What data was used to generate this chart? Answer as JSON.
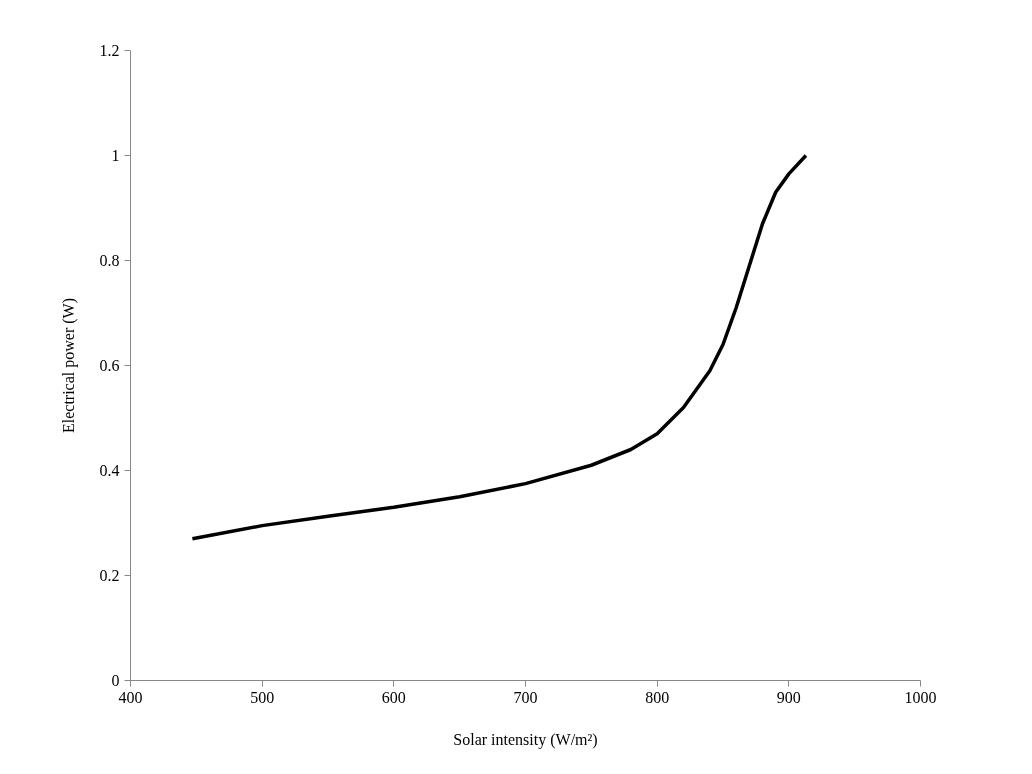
{
  "chart_data": {
    "type": "line",
    "xlabel": "Solar intensity (W/m²)",
    "ylabel": "Electrical power (W)",
    "x": [
      447,
      500,
      550,
      600,
      650,
      700,
      750,
      780,
      800,
      820,
      840,
      850,
      860,
      870,
      880,
      890,
      900,
      913
    ],
    "series": [
      {
        "color": "#000000",
        "values": [
          0.27,
          0.295,
          0.313,
          0.33,
          0.35,
          0.375,
          0.41,
          0.44,
          0.47,
          0.52,
          0.59,
          0.64,
          0.71,
          0.79,
          0.87,
          0.93,
          0.965,
          1.0
        ]
      }
    ],
    "xlim": [
      400,
      1000
    ],
    "ylim": [
      0,
      1.2
    ],
    "xticks": [
      400,
      500,
      600,
      700,
      800,
      900,
      1000
    ],
    "yticks": [
      0,
      0.2,
      0.4,
      0.6,
      0.8,
      1,
      1.2
    ],
    "grid": false,
    "marker": "none",
    "line_style": "solid"
  }
}
